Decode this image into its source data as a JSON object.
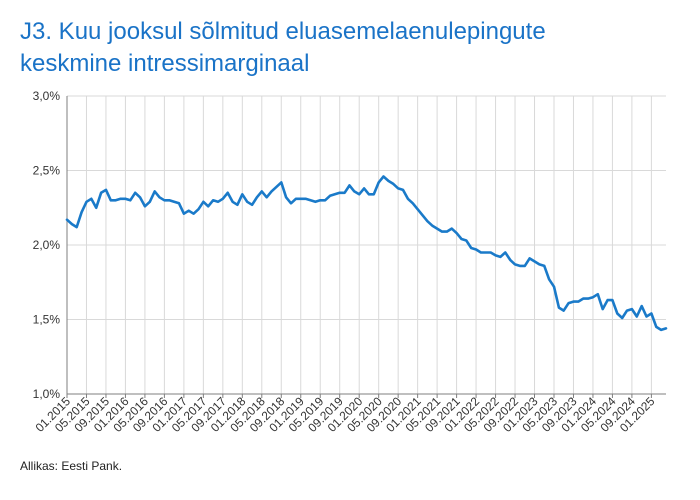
{
  "title_lines": [
    "J3. Kuu jooksul sõlmitud eluasemelaenulepingute",
    "keskmine intressimarginaal"
  ],
  "source": "Allikas: Eesti Pank.",
  "colors": {
    "title": "#1a73c7",
    "line": "#1a7ac9",
    "grid": "#d9d9d9",
    "axis": "#7f7f7f",
    "text": "#333333"
  },
  "chart_data": {
    "type": "line",
    "title": "J3. Kuu jooksul sõlmitud eluasemelaenulepingute keskmine intressimarginaal",
    "ylim": [
      1.0,
      3.0
    ],
    "yticks": [
      1.0,
      1.5,
      2.0,
      2.5,
      3.0
    ],
    "ytick_labels": [
      "1,0%",
      "1,5%",
      "2,0%",
      "2,5%",
      "3,0%"
    ],
    "grid": "vertical lines at every 4 months, horizontal lines at y ticks",
    "xtick_labels": [
      "01.2015",
      "05.2015",
      "09.2015",
      "01.2016",
      "05.2016",
      "09.2016",
      "01.2017",
      "05.2017",
      "09.2017",
      "01.2018",
      "05.2018",
      "09.2018",
      "01.2019",
      "05.2019",
      "09.2019",
      "01.2020",
      "05.2020",
      "09.2020",
      "01.2021",
      "05.2021",
      "09.2021",
      "01.2022",
      "05.2022",
      "09.2022",
      "01.2023",
      "05.2023",
      "09.2023",
      "01.2024",
      "05.2024",
      "09.2024",
      "01.2025"
    ],
    "x_start": "01.2015",
    "x_end": "01.2025",
    "series": [
      {
        "values": [
          2.17,
          2.14,
          2.12,
          2.22,
          2.29,
          2.31,
          2.25,
          2.35,
          2.37,
          2.3,
          2.3,
          2.31,
          2.31,
          2.3,
          2.35,
          2.32,
          2.26,
          2.29,
          2.36,
          2.32,
          2.3,
          2.3,
          2.29,
          2.28,
          2.21,
          2.23,
          2.21,
          2.24,
          2.29,
          2.26,
          2.3,
          2.29,
          2.31,
          2.35,
          2.29,
          2.27,
          2.34,
          2.29,
          2.27,
          2.32,
          2.36,
          2.32,
          2.36,
          2.39,
          2.42,
          2.32,
          2.28,
          2.31,
          2.31,
          2.31,
          2.3,
          2.29,
          2.3,
          2.3,
          2.33,
          2.34,
          2.35,
          2.35,
          2.4,
          2.36,
          2.34,
          2.38,
          2.34,
          2.34,
          2.42,
          2.46,
          2.43,
          2.41,
          2.38,
          2.37,
          2.31,
          2.28,
          2.24,
          2.2,
          2.16,
          2.13,
          2.11,
          2.09,
          2.09,
          2.11,
          2.08,
          2.04,
          2.03,
          1.98,
          1.97,
          1.95,
          1.95,
          1.95,
          1.93,
          1.92,
          1.95,
          1.9,
          1.87,
          1.86,
          1.86,
          1.91,
          1.89,
          1.87,
          1.86,
          1.77,
          1.72,
          1.58,
          1.56,
          1.61,
          1.62,
          1.62,
          1.64,
          1.64,
          1.65,
          1.67,
          1.57,
          1.63,
          1.63,
          1.54,
          1.51,
          1.56,
          1.57,
          1.52,
          1.59,
          1.52,
          1.54,
          1.45,
          1.43,
          1.44
        ]
      }
    ]
  }
}
